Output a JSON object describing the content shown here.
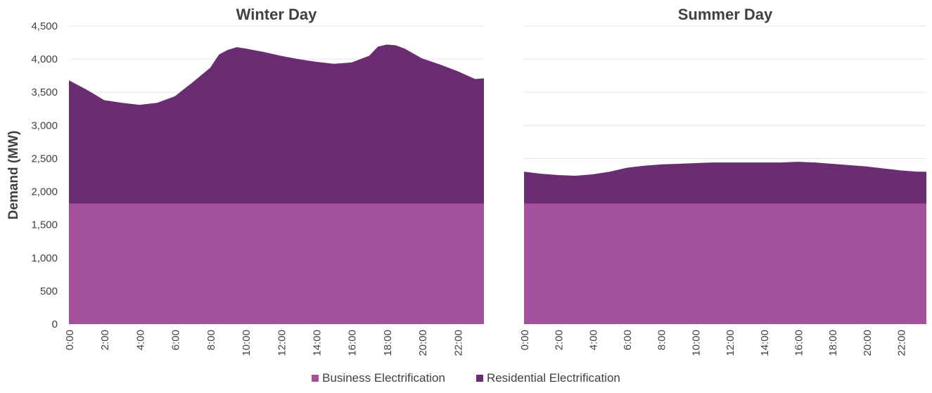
{
  "colors": {
    "business": "#a3519b",
    "residential": "#6b2d72",
    "grid": "#e6e6e6",
    "text": "#404040",
    "title": "#404040"
  },
  "legend": [
    {
      "label": "Business Electrification",
      "color": "#a3519b"
    },
    {
      "label": "Residential Electrification",
      "color": "#6b2d72"
    }
  ],
  "chart_data": [
    {
      "type": "area",
      "stacked": true,
      "title": "Winter Day",
      "ylabel": "Demand (MW)",
      "ylim": [
        0,
        4500
      ],
      "yticks": [
        "0",
        "500",
        "1,000",
        "1,500",
        "2,000",
        "2,500",
        "3,000",
        "3,500",
        "4,000",
        "4,500"
      ],
      "xtick_labels": [
        "0:00",
        "2:00",
        "4:00",
        "6:00",
        "8:00",
        "10:00",
        "12:00",
        "14:00",
        "16:00",
        "18:00",
        "20:00",
        "22:00"
      ],
      "grid": true,
      "x": [
        0,
        1,
        2,
        3,
        4,
        5,
        6,
        7,
        8,
        8.5,
        9,
        9.5,
        10,
        11,
        12,
        13,
        14,
        15,
        16,
        17,
        17.5,
        18,
        18.5,
        19,
        20,
        21,
        22,
        23,
        23.5
      ],
      "series": [
        {
          "name": "Business Electrification",
          "values": [
            1820,
            1820,
            1820,
            1820,
            1820,
            1820,
            1820,
            1820,
            1820,
            1820,
            1820,
            1820,
            1820,
            1820,
            1820,
            1820,
            1820,
            1820,
            1820,
            1820,
            1820,
            1820,
            1820,
            1820,
            1820,
            1820,
            1820,
            1820,
            1820
          ]
        },
        {
          "name": "Residential Electrification",
          "values": [
            1860,
            1720,
            1560,
            1520,
            1490,
            1520,
            1620,
            1830,
            2050,
            2250,
            2320,
            2360,
            2340,
            2290,
            2230,
            2180,
            2140,
            2110,
            2130,
            2230,
            2370,
            2400,
            2390,
            2340,
            2190,
            2100,
            2000,
            1880,
            1890
          ]
        }
      ]
    },
    {
      "type": "area",
      "stacked": true,
      "title": "Summer Day",
      "ylim": [
        0,
        4500
      ],
      "xtick_labels": [
        "0:00",
        "2:00",
        "4:00",
        "6:00",
        "8:00",
        "10:00",
        "12:00",
        "14:00",
        "16:00",
        "18:00",
        "20:00",
        "22:00"
      ],
      "grid": true,
      "x": [
        0,
        1,
        2,
        3,
        4,
        5,
        6,
        7,
        8,
        9,
        10,
        11,
        12,
        13,
        14,
        15,
        16,
        17,
        18,
        19,
        20,
        21,
        22,
        23,
        23.5
      ],
      "series": [
        {
          "name": "Business Electrification",
          "values": [
            1820,
            1820,
            1820,
            1820,
            1820,
            1820,
            1820,
            1820,
            1820,
            1820,
            1820,
            1820,
            1820,
            1820,
            1820,
            1820,
            1820,
            1820,
            1820,
            1820,
            1820,
            1820,
            1820,
            1820,
            1820
          ]
        },
        {
          "name": "Residential Electrification",
          "values": [
            480,
            450,
            430,
            420,
            440,
            480,
            540,
            570,
            590,
            600,
            610,
            620,
            620,
            620,
            620,
            620,
            630,
            620,
            600,
            580,
            560,
            530,
            500,
            480,
            480
          ]
        }
      ]
    }
  ]
}
